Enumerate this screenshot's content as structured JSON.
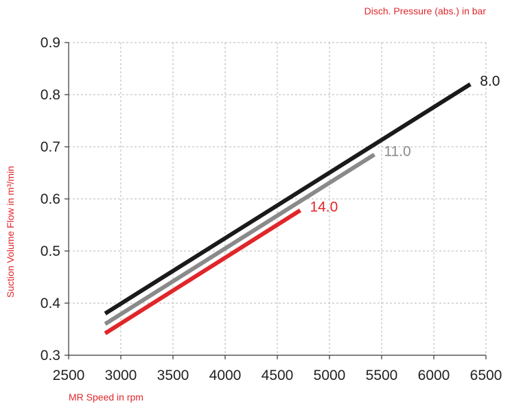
{
  "chart_data": {
    "type": "line",
    "legend_title": "Disch. Pressure (abs.) in bar",
    "xlabel": "MR Speed in rpm",
    "ylabel": "Suction Volume Flow in m³/min",
    "xlim": [
      2500,
      6500
    ],
    "ylim": [
      0.3,
      0.9
    ],
    "x_ticks": [
      "2500",
      "3000",
      "3500",
      "4000",
      "4500",
      "5000",
      "5500",
      "6000",
      "6500"
    ],
    "y_ticks": [
      "0.3",
      "0.4",
      "0.5",
      "0.6",
      "0.7",
      "0.8",
      "0.9"
    ],
    "grid": true,
    "grid_style": "dashed",
    "series": [
      {
        "name": "8.0",
        "color": "#1a1a1a",
        "x": [
          2850,
          6350
        ],
        "values": [
          0.38,
          0.82
        ]
      },
      {
        "name": "11.0",
        "color": "#8a8a8a",
        "x": [
          2850,
          5430
        ],
        "values": [
          0.36,
          0.685
        ]
      },
      {
        "name": "14.0",
        "color": "#e0262a",
        "x": [
          2850,
          4720
        ],
        "values": [
          0.342,
          0.578
        ]
      }
    ],
    "label_color": "#e0262a"
  }
}
